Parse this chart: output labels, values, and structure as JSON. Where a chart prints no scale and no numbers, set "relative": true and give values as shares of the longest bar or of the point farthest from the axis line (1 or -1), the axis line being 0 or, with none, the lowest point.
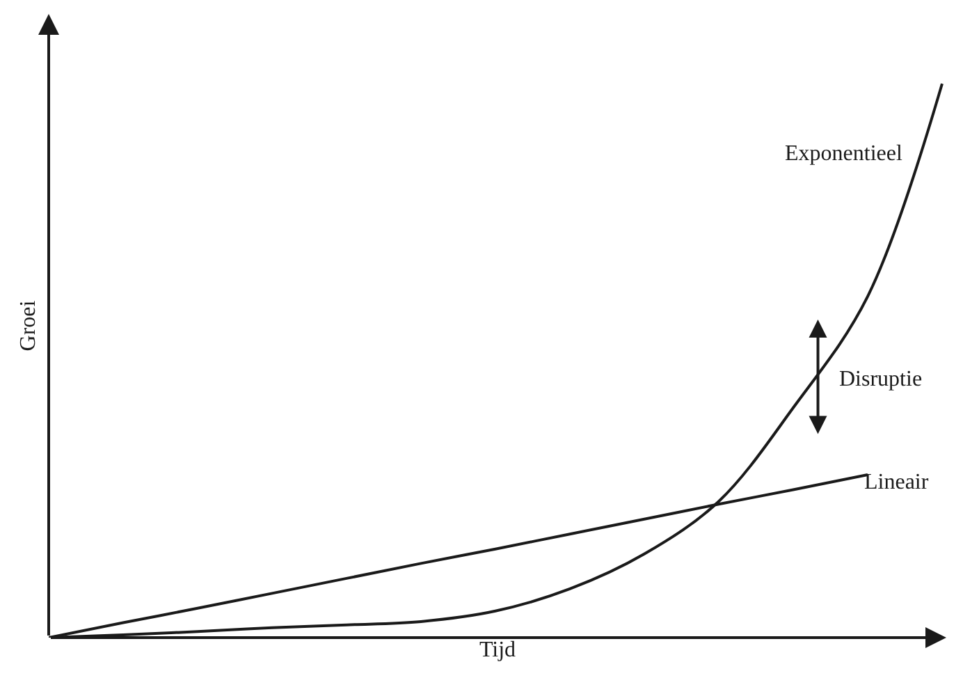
{
  "chart_data": {
    "type": "line",
    "relative": true,
    "xlabel": "Tijd",
    "ylabel": "Groei",
    "legend": false,
    "marker": "none",
    "line_style": "solid",
    "tick_labels": false,
    "categories": [
      null,
      null,
      null,
      null,
      null,
      null,
      null,
      null,
      null,
      null,
      null,
      null,
      null
    ],
    "series": [
      {
        "name": "Exponentieel",
        "color": "#1a1a1a",
        "values": [
          0,
          0.005,
          0.011,
          0.018,
          0.023,
          0.029,
          0.048,
          0.088,
          0.151,
          0.246,
          0.415,
          0.616,
          1
        ]
      },
      {
        "name": "Lineair",
        "color": "#1a1a1a",
        "values": [
          0,
          0.027,
          0.053,
          0.08,
          0.107,
          0.134,
          0.16,
          0.187,
          0.214,
          0.241,
          0.267,
          0.294,
          null
        ]
      }
    ],
    "annotations": [
      "Disruptie"
    ]
  }
}
